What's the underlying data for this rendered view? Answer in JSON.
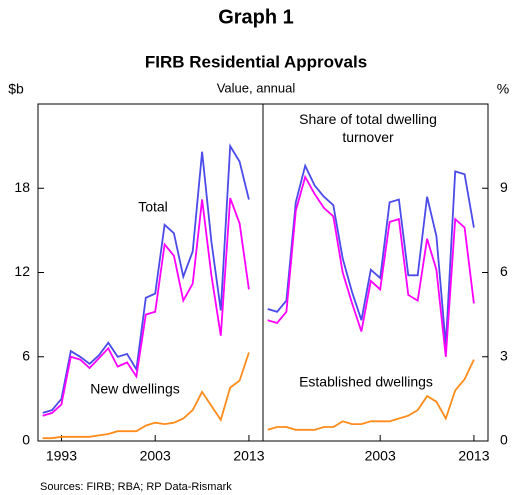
{
  "title": "Graph 1",
  "subtitle": "FIRB Residential Approvals",
  "note": "Value, annual",
  "source": "Sources: FIRB; RBA; RP Data-Rismark",
  "chart_data": [
    {
      "type": "line",
      "y_label": "$b",
      "x": [
        1991,
        1992,
        1993,
        1994,
        1995,
        1996,
        1997,
        1998,
        1999,
        2000,
        2001,
        2002,
        2003,
        2004,
        2005,
        2006,
        2007,
        2008,
        2009,
        2010,
        2011,
        2012,
        2013
      ],
      "xlim": [
        1990.5,
        2014.5
      ],
      "xticks": [
        1993,
        2003,
        2013
      ],
      "ylim": [
        0,
        24
      ],
      "yticks": [
        0,
        6,
        12,
        18
      ],
      "series": [
        {
          "name": "Total",
          "color": "#4b4bea",
          "values": [
            2.0,
            2.2,
            3.0,
            6.4,
            6.0,
            5.5,
            6.1,
            7.0,
            6.0,
            6.2,
            5.1,
            10.2,
            10.5,
            15.4,
            14.8,
            11.7,
            13.5,
            20.6,
            14.2,
            9.3,
            21.0,
            19.9,
            17.2
          ]
        },
        {
          "name": "New dwellings",
          "color": "#ff00ff",
          "values": [
            1.8,
            2.0,
            2.6,
            6.0,
            5.8,
            5.2,
            5.9,
            6.6,
            5.3,
            5.6,
            4.6,
            9.0,
            9.2,
            14.0,
            13.2,
            10.0,
            11.2,
            17.2,
            11.8,
            7.5,
            17.3,
            15.5,
            10.8
          ]
        },
        {
          "color": "#ff8c1a",
          "values": [
            0.2,
            0.2,
            0.3,
            0.3,
            0.3,
            0.3,
            0.4,
            0.5,
            0.7,
            0.7,
            0.7,
            1.1,
            1.3,
            1.2,
            1.3,
            1.6,
            2.2,
            3.5,
            2.5,
            1.5,
            3.8,
            4.3,
            6.3
          ]
        }
      ]
    },
    {
      "type": "line",
      "y_label": "%",
      "annotation": "Share of total dwelling turnover",
      "x": [
        1991,
        1992,
        1993,
        1994,
        1995,
        1996,
        1997,
        1998,
        1999,
        2000,
        2001,
        2002,
        2003,
        2004,
        2005,
        2006,
        2007,
        2008,
        2009,
        2010,
        2011,
        2012,
        2013
      ],
      "xlim": [
        1990.5,
        2014.5
      ],
      "xticks": [
        2003,
        2013
      ],
      "ylim": [
        0,
        12
      ],
      "yticks": [
        0,
        3,
        6,
        9
      ],
      "series": [
        {
          "color": "#4b4bea",
          "values": [
            4.7,
            4.6,
            5.0,
            8.5,
            9.8,
            9.1,
            8.7,
            8.4,
            6.5,
            5.3,
            4.3,
            6.1,
            5.8,
            8.5,
            8.6,
            5.9,
            5.9,
            8.7,
            7.3,
            3.4,
            9.6,
            9.5,
            7.6
          ]
        },
        {
          "color": "#ff00ff",
          "values": [
            4.3,
            4.2,
            4.6,
            8.2,
            9.4,
            8.8,
            8.3,
            8.0,
            6.0,
            4.9,
            3.9,
            5.7,
            5.4,
            7.8,
            7.9,
            5.2,
            5.0,
            7.2,
            6.1,
            3.0,
            7.9,
            7.6,
            4.9
          ]
        },
        {
          "name": "Established dwellings",
          "color": "#ff8c1a",
          "values": [
            0.4,
            0.5,
            0.5,
            0.4,
            0.4,
            0.4,
            0.5,
            0.5,
            0.7,
            0.6,
            0.6,
            0.7,
            0.7,
            0.7,
            0.8,
            0.9,
            1.1,
            1.6,
            1.4,
            0.8,
            1.8,
            2.2,
            2.9
          ]
        }
      ]
    }
  ]
}
